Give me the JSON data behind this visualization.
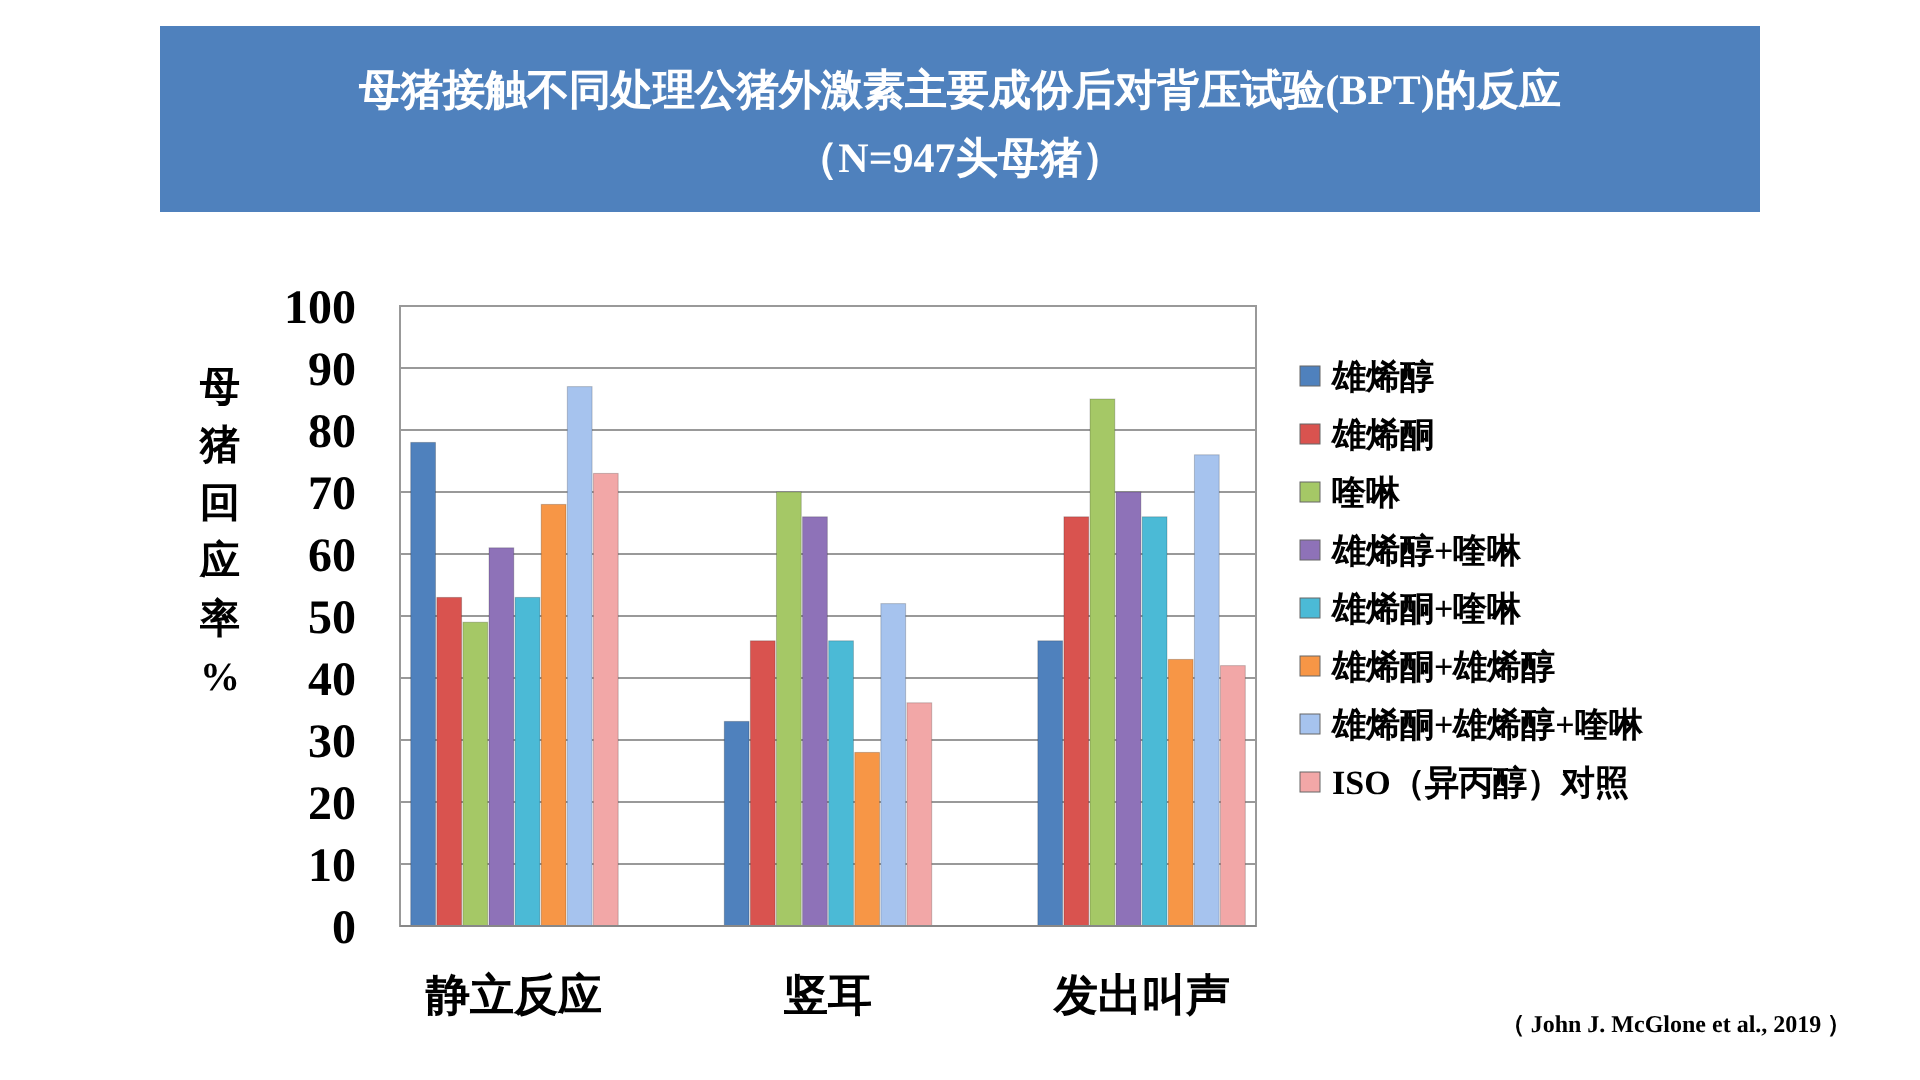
{
  "chart_data": {
    "type": "bar",
    "title": "母猪接触不同处理公猪外激素主要成份后对背压试验(BPT)的反应",
    "subtitle": "（N=947头母猪）",
    "ylabel": "母猪回应率%",
    "categories": [
      "静立反应",
      "竖耳",
      "发出叫声"
    ],
    "ylim": [
      0,
      100
    ],
    "yticks": [
      0,
      10,
      20,
      30,
      40,
      50,
      60,
      70,
      80,
      90,
      100
    ],
    "grid": "y",
    "legend": "right",
    "annotations": [
      "（ John J. McGlone et al., 2019 ）"
    ],
    "series": [
      {
        "name": "雄烯醇",
        "color": "#4f81bd",
        "values": [
          78,
          33,
          46
        ]
      },
      {
        "name": "雄烯酮",
        "color": "#d9534f",
        "values": [
          53,
          46,
          66
        ]
      },
      {
        "name": "喹啉",
        "color": "#a5c866",
        "values": [
          49,
          70,
          85
        ]
      },
      {
        "name": "雄烯醇+喹啉",
        "color": "#8e72b8",
        "values": [
          61,
          66,
          70
        ]
      },
      {
        "name": "雄烯酮+喹啉",
        "color": "#4bbad6",
        "values": [
          53,
          46,
          66
        ]
      },
      {
        "name": "雄烯酮+雄烯醇",
        "color": "#f79646",
        "values": [
          68,
          28,
          43
        ]
      },
      {
        "name": "雄烯酮+雄烯醇+喹啉",
        "color": "#a6c3ee",
        "values": [
          87,
          52,
          76
        ]
      },
      {
        "name": "ISO（异丙醇）对照",
        "color": "#f2a7a7",
        "values": [
          73,
          36,
          42
        ]
      }
    ]
  }
}
